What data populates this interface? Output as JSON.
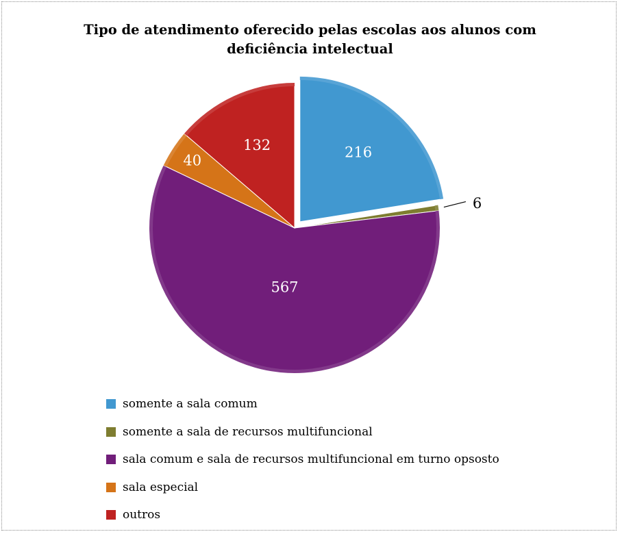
{
  "chart_data": {
    "type": "pie",
    "title": "Tipo de atendimento oferecido pelas escolas aos alunos com deficiência intelectual",
    "title_lines": [
      "Tipo de atendimento oferecido pelas escolas aos alunos com",
      "deficiência intelectual"
    ],
    "slices": [
      {
        "name": "somente a sala comum",
        "value": 216,
        "label": "216",
        "color": "#4198d0",
        "exploded": true
      },
      {
        "name": "somente a sala de recursos multifuncional",
        "value": 6,
        "label": "6",
        "color": "#7e7d30",
        "label_outside": true
      },
      {
        "name": "sala comum e sala de recursos multifuncional em turno opsosto",
        "value": 567,
        "label": "567",
        "color": "#711e7a"
      },
      {
        "name": "sala especial",
        "value": 40,
        "label": "40",
        "color": "#d57418"
      },
      {
        "name": "outros",
        "value": 132,
        "label": "132",
        "color": "#bf2221"
      }
    ],
    "legend_position": "bottom-left"
  }
}
